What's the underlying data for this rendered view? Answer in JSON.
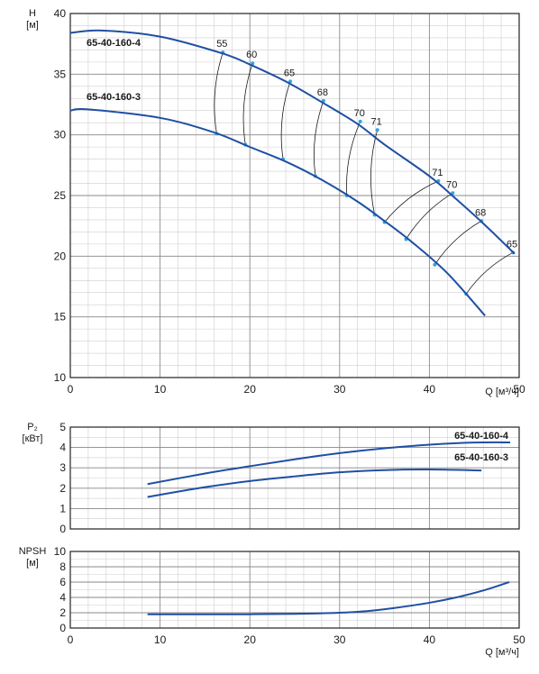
{
  "chart_data": [
    {
      "type": "line",
      "ylabel": "H",
      "yunit": "[м]",
      "xlabel": "Q",
      "xunit": "[м³/ч]",
      "xlim": [
        0,
        50
      ],
      "ylim": [
        10,
        40
      ],
      "xticks": [
        0,
        10,
        20,
        30,
        40,
        50
      ],
      "yticks": [
        10,
        15,
        20,
        25,
        30,
        35,
        40
      ],
      "grid": true,
      "series": [
        {
          "name": "65-40-160-4",
          "x": [
            0,
            3.5,
            10,
            17,
            20,
            24,
            28,
            32,
            35,
            40,
            43,
            46,
            49.5
          ],
          "y": [
            38.4,
            38.6,
            38.1,
            36.7,
            35.8,
            34.4,
            32.7,
            30.9,
            29.2,
            26.6,
            24.7,
            22.7,
            20.2
          ]
        },
        {
          "name": "65-40-160-3",
          "x": [
            0,
            2,
            10,
            16,
            20,
            24,
            28,
            32,
            35,
            38,
            42,
            46.2
          ],
          "y": [
            32.0,
            32.1,
            31.4,
            30.2,
            29.0,
            27.8,
            26.3,
            24.5,
            22.9,
            21.2,
            18.6,
            15.1
          ]
        }
      ],
      "efficiency": [
        {
          "label": "55",
          "p1": [
            17,
            36.8
          ],
          "p2": [
            16.3,
            30.1
          ]
        },
        {
          "label": "60",
          "p1": [
            20.3,
            35.9
          ],
          "p2": [
            19.5,
            29.2
          ]
        },
        {
          "label": "65",
          "p1": [
            24.5,
            34.4
          ],
          "p2": [
            23.7,
            28.0
          ]
        },
        {
          "label": "68",
          "p1": [
            28.2,
            32.8
          ],
          "p2": [
            27.3,
            26.6
          ]
        },
        {
          "label": "70",
          "p1": [
            32.3,
            31.1
          ],
          "p2": [
            30.8,
            25.0
          ]
        },
        {
          "label": "71",
          "p1": [
            34.2,
            30.4
          ],
          "p2": [
            33.9,
            23.4
          ]
        },
        {
          "label": "71",
          "p1": [
            41.0,
            26.2
          ],
          "p2": [
            35.0,
            22.8
          ]
        },
        {
          "label": "70",
          "p1": [
            42.6,
            25.2
          ],
          "p2": [
            37.4,
            21.4
          ]
        },
        {
          "label": "68",
          "p1": [
            45.8,
            22.9
          ],
          "p2": [
            40.6,
            19.3
          ]
        },
        {
          "label": "65",
          "p1": [
            49.3,
            20.3
          ],
          "p2": [
            44.1,
            16.9
          ]
        }
      ]
    },
    {
      "type": "line",
      "ylabel": "P₂",
      "yunit": "[кВт]",
      "xlim": [
        0,
        50
      ],
      "ylim": [
        0,
        5
      ],
      "yticks": [
        0,
        1,
        2,
        3,
        4,
        5
      ],
      "grid": true,
      "series": [
        {
          "name": "65-40-160-4",
          "x": [
            8.6,
            15,
            20,
            25,
            30,
            35,
            40,
            45,
            49
          ],
          "y": [
            2.2,
            2.72,
            3.08,
            3.42,
            3.72,
            3.96,
            4.14,
            4.24,
            4.25
          ]
        },
        {
          "name": "65-40-160-3",
          "x": [
            8.6,
            15,
            20,
            25,
            30,
            35,
            40,
            45.8
          ],
          "y": [
            1.57,
            2.05,
            2.35,
            2.58,
            2.78,
            2.89,
            2.92,
            2.87
          ]
        }
      ]
    },
    {
      "type": "line",
      "ylabel": "NPSH",
      "yunit": "[м]",
      "xlabel": "Q",
      "xunit": "[м³/ч]",
      "xlim": [
        0,
        50
      ],
      "ylim": [
        0,
        10
      ],
      "xticks": [
        0,
        10,
        20,
        30,
        40,
        50
      ],
      "yticks": [
        0,
        2,
        4,
        6,
        8,
        10
      ],
      "grid": true,
      "series": [
        {
          "name": "NPSH",
          "x": [
            8.6,
            15,
            20,
            25,
            30,
            33,
            36,
            40,
            43,
            46,
            48.9
          ],
          "y": [
            1.8,
            1.79,
            1.8,
            1.85,
            2.0,
            2.2,
            2.6,
            3.3,
            4.0,
            4.9,
            6.0
          ]
        }
      ]
    }
  ]
}
